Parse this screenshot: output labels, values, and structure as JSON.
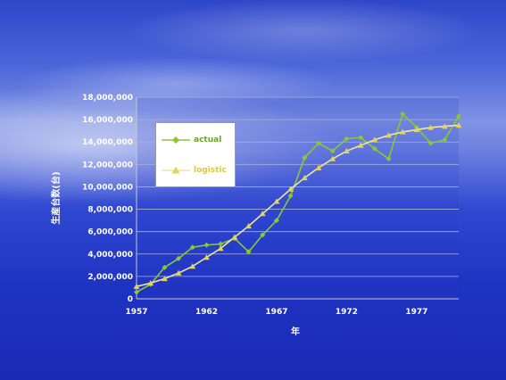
{
  "chart_data": {
    "type": "line",
    "title": "",
    "xlabel": "年",
    "ylabel": "生産台数(台)",
    "x_tick_labels": [
      "1957",
      "1962",
      "1967",
      "1972",
      "1977"
    ],
    "y_tick_labels": [
      "0",
      "2,000,000",
      "4,000,000",
      "6,000,000",
      "8,000,000",
      "10,000,000",
      "12,000,000",
      "14,000,000",
      "16,000,000",
      "18,000,000"
    ],
    "ylim": [
      0,
      18000000
    ],
    "xlim": [
      1957,
      1980
    ],
    "grid": true,
    "legend_position": "top-left",
    "x": [
      1957,
      1958,
      1959,
      1960,
      1961,
      1962,
      1963,
      1964,
      1965,
      1966,
      1967,
      1968,
      1969,
      1970,
      1971,
      1972,
      1973,
      1974,
      1975,
      1976,
      1977,
      1978,
      1979,
      1980
    ],
    "series": [
      {
        "name": "actual",
        "color": "#8ac832",
        "values": [
          600000,
          1300000,
          2800000,
          3600000,
          4600000,
          4800000,
          4900000,
          5400000,
          4200000,
          5700000,
          7000000,
          9200000,
          12600000,
          13900000,
          13200000,
          14300000,
          14400000,
          13400000,
          12500000,
          16500000,
          15300000,
          13900000,
          14200000,
          16300000
        ]
      },
      {
        "name": "logistic",
        "color": "#e2d45a",
        "values": [
          1100000,
          1400000,
          1800000,
          2300000,
          2900000,
          3700000,
          4500000,
          5500000,
          6500000,
          7600000,
          8700000,
          9800000,
          10800000,
          11700000,
          12500000,
          13200000,
          13700000,
          14200000,
          14600000,
          14900000,
          15100000,
          15300000,
          15400000,
          15500000
        ]
      }
    ]
  }
}
